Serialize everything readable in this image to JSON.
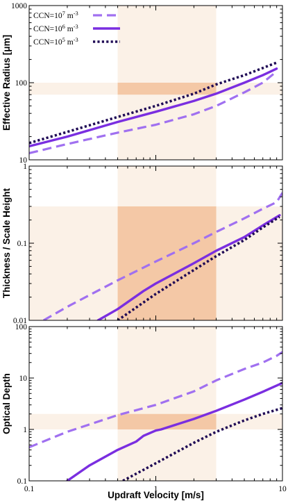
{
  "colors": {
    "ccn7": "#a070f0",
    "ccn6": "#7a2ee0",
    "ccn5": "#1f0a55",
    "band_light": "#fbf1e7",
    "band_dark": "#f4c8a6"
  },
  "legend": {
    "placement": "top-left",
    "entries": [
      {
        "base": "CCN=10",
        "exp": "7",
        "unit": " m",
        "uexp": "-3",
        "style": "dashed",
        "color_key": "ccn7"
      },
      {
        "base": "CCN=10",
        "exp": "6",
        "unit": " m",
        "uexp": "-3",
        "style": "solid",
        "color_key": "ccn6"
      },
      {
        "base": "CCN=10",
        "exp": "5",
        "unit": " m",
        "uexp": "-3",
        "style": "dotted",
        "color_key": "ccn5"
      }
    ]
  },
  "chart_data": [
    {
      "type": "line",
      "ylabel": "Effective Radius [μm]",
      "xscale": "log",
      "yscale": "log",
      "xlim": [
        0.1,
        10
      ],
      "ylim": [
        10,
        1000
      ],
      "yticks": [
        "10",
        "100",
        "1000"
      ],
      "xticks": [],
      "x_band": [
        0.5,
        3
      ],
      "y_band": [
        70,
        100
      ],
      "series": [
        {
          "key": "ccn7",
          "x": [
            0.1,
            0.2,
            0.5,
            1,
            2,
            3,
            5,
            7,
            9
          ],
          "y": [
            12.2,
            16,
            22.5,
            28.5,
            39,
            50,
            75,
            100,
            140
          ]
        },
        {
          "key": "ccn6",
          "x": [
            0.1,
            0.2,
            0.5,
            1,
            2,
            3,
            5,
            7,
            9
          ],
          "y": [
            15,
            20,
            31,
            42,
            58,
            72,
            100,
            125,
            152
          ]
        },
        {
          "key": "ccn5",
          "x": [
            0.1,
            0.2,
            0.5,
            1,
            2,
            3,
            5,
            7,
            9
          ],
          "y": [
            16.5,
            23,
            36,
            50,
            72,
            95,
            125,
            155,
            182
          ]
        }
      ]
    },
    {
      "type": "line",
      "ylabel": "Thickness / Scale Height",
      "xscale": "log",
      "yscale": "log",
      "xlim": [
        0.1,
        10
      ],
      "ylim": [
        0.01,
        1
      ],
      "yticks": [
        "0.01",
        "0.1",
        "1"
      ],
      "xticks": [],
      "x_band": [
        0.5,
        3
      ],
      "y_band": [
        0.01,
        0.3
      ],
      "series": [
        {
          "key": "ccn7",
          "x": [
            0.13,
            0.2,
            0.5,
            1,
            2,
            3,
            5,
            7,
            9,
            10
          ],
          "y": [
            0.01,
            0.015,
            0.033,
            0.058,
            0.1,
            0.14,
            0.21,
            0.28,
            0.34,
            0.45
          ]
        },
        {
          "key": "ccn6",
          "x": [
            0.35,
            0.5,
            0.8,
            1,
            2,
            3,
            5,
            7,
            9.5
          ],
          "y": [
            0.01,
            0.014,
            0.024,
            0.03,
            0.055,
            0.08,
            0.12,
            0.17,
            0.23
          ]
        },
        {
          "key": "ccn5",
          "x": [
            0.5,
            1,
            2,
            3,
            5,
            7,
            9.5
          ],
          "y": [
            0.01,
            0.022,
            0.045,
            0.068,
            0.11,
            0.16,
            0.22
          ]
        }
      ]
    },
    {
      "type": "line",
      "ylabel": "Optical Depth",
      "xlabel": "Updraft Velocity [m/s]",
      "xscale": "log",
      "yscale": "log",
      "xlim": [
        0.1,
        10
      ],
      "ylim": [
        0.1,
        100
      ],
      "yticks": [
        "0.1",
        "1",
        "10",
        "100"
      ],
      "xticks": [
        "0.1",
        "1",
        "10"
      ],
      "x_band": [
        0.5,
        3
      ],
      "y_band": [
        1,
        2
      ],
      "series": [
        {
          "key": "ccn7",
          "x": [
            0.1,
            0.2,
            0.5,
            1,
            2,
            3,
            5,
            7,
            9,
            10
          ],
          "y": [
            0.45,
            0.9,
            1.9,
            3.0,
            5.5,
            9,
            15,
            20,
            27,
            32
          ]
        },
        {
          "key": "ccn6",
          "x": [
            0.2,
            0.3,
            0.5,
            0.7,
            0.8,
            1,
            1.1,
            2,
            3,
            5,
            7,
            10
          ],
          "y": [
            0.1,
            0.2,
            0.4,
            0.58,
            0.75,
            0.95,
            1.0,
            1.6,
            2.3,
            3.8,
            5.4,
            8
          ]
        },
        {
          "key": "ccn5",
          "x": [
            0.55,
            1,
            2,
            3,
            5,
            7,
            10
          ],
          "y": [
            0.1,
            0.22,
            0.55,
            0.9,
            1.5,
            2.0,
            2.6
          ]
        }
      ]
    }
  ]
}
